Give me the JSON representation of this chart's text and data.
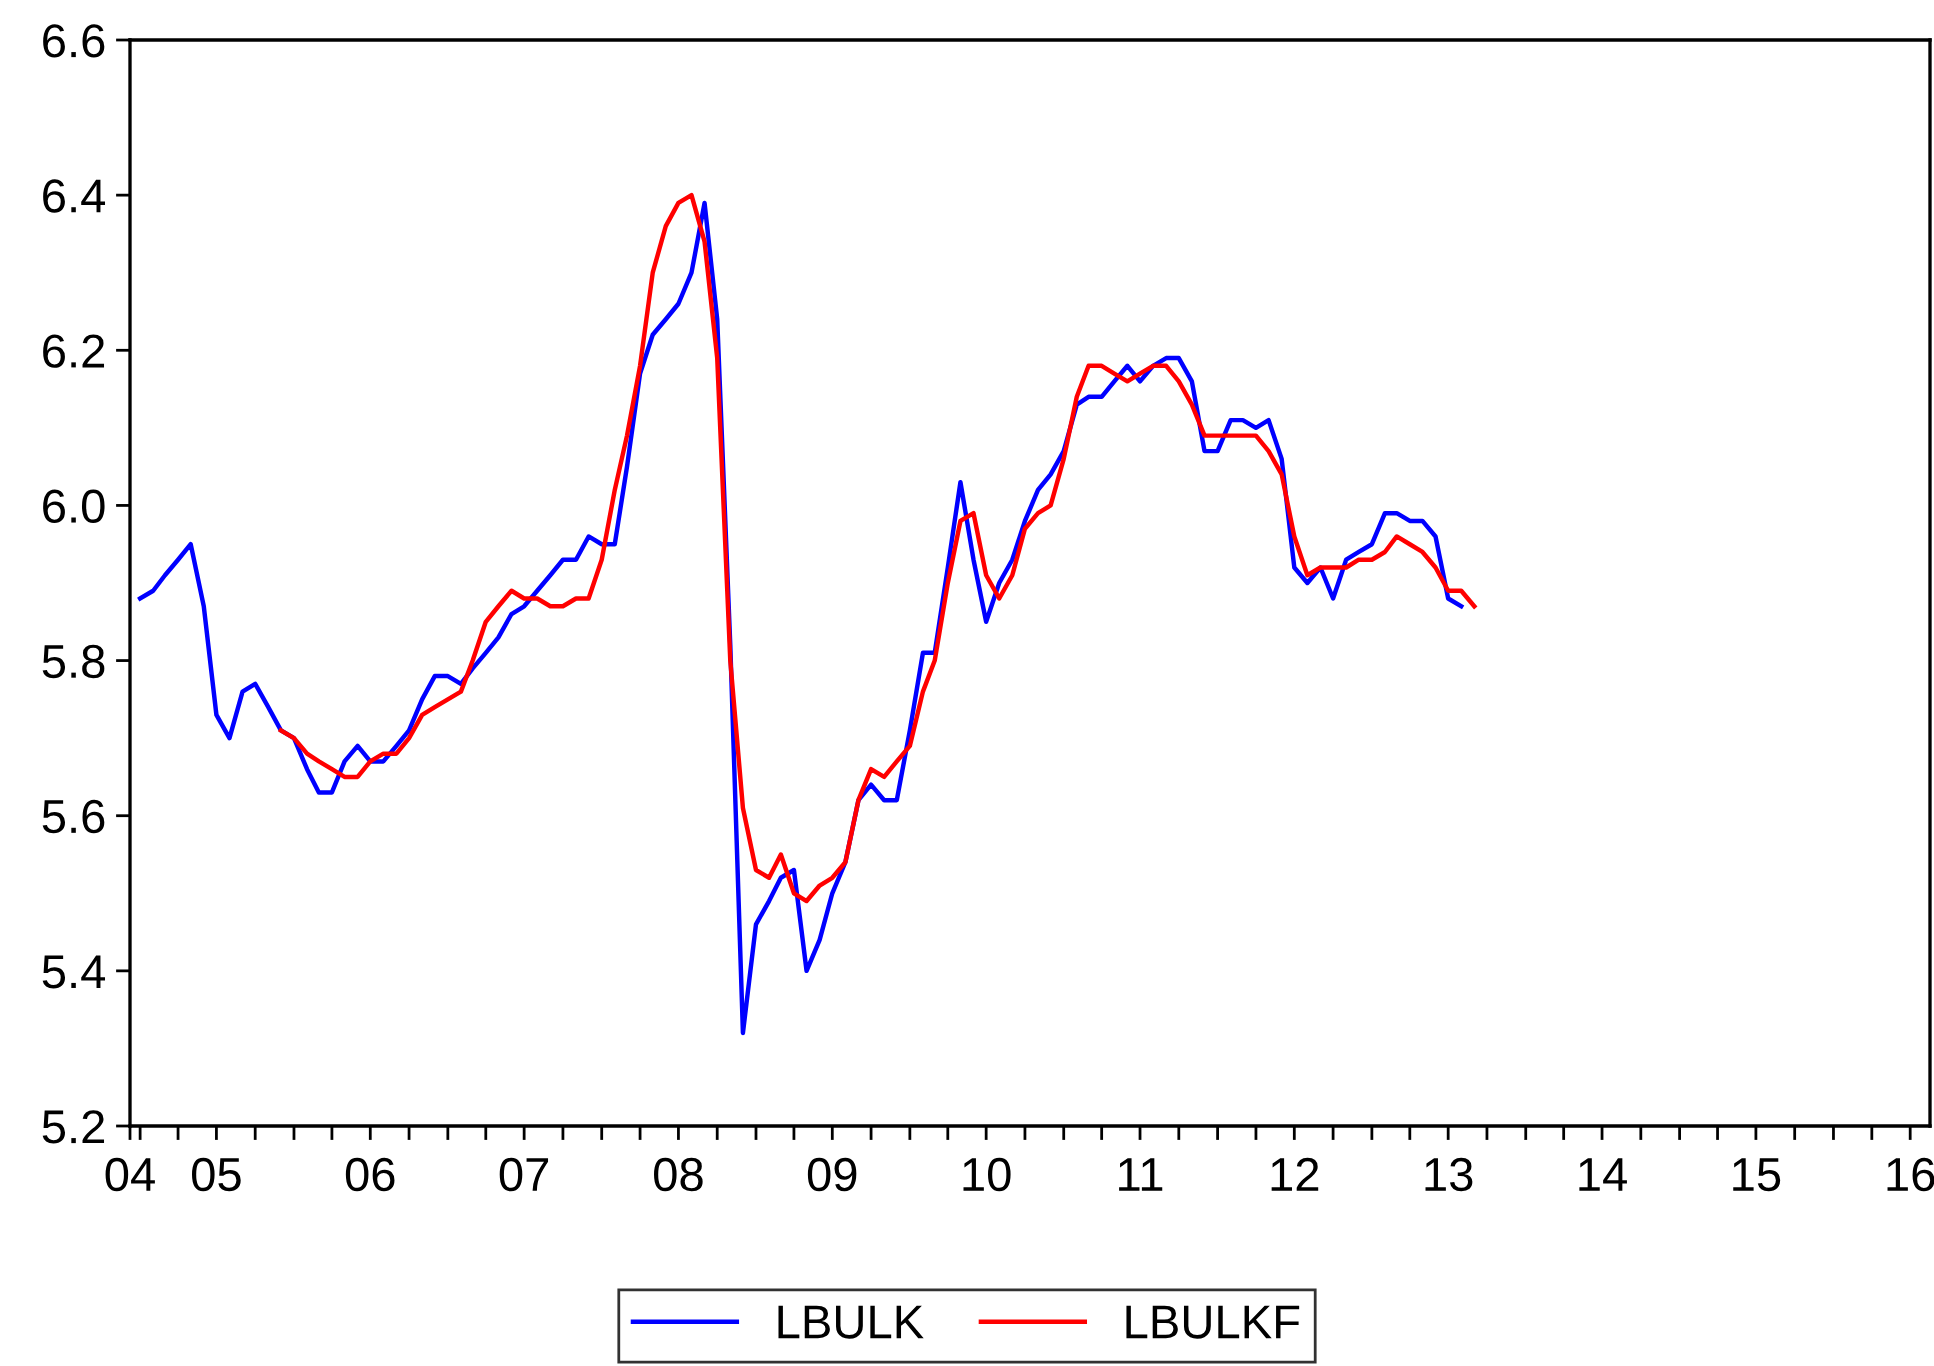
{
  "chart_data": {
    "type": "line",
    "xlim": [
      "2004-12-08",
      "2016-08-17"
    ],
    "xticks": [
      {
        "value": "2004-12-08",
        "label": "04"
      },
      {
        "value": "2005-01-01",
        "label": null
      },
      {
        "value": "2005-04-01",
        "label": null
      },
      {
        "value": "2005-07-01",
        "label": "05"
      },
      {
        "value": "2005-10-01",
        "label": null
      },
      {
        "value": "2006-01-01",
        "label": null
      },
      {
        "value": "2006-04-01",
        "label": null
      },
      {
        "value": "2006-07-01",
        "label": "06"
      },
      {
        "value": "2006-10-01",
        "label": null
      },
      {
        "value": "2007-01-01",
        "label": null
      },
      {
        "value": "2007-04-01",
        "label": null
      },
      {
        "value": "2007-07-01",
        "label": "07"
      },
      {
        "value": "2007-10-01",
        "label": null
      },
      {
        "value": "2008-01-01",
        "label": null
      },
      {
        "value": "2008-04-01",
        "label": null
      },
      {
        "value": "2008-07-01",
        "label": "08"
      },
      {
        "value": "2008-10-01",
        "label": null
      },
      {
        "value": "2009-01-01",
        "label": null
      },
      {
        "value": "2009-04-01",
        "label": null
      },
      {
        "value": "2009-07-01",
        "label": "09"
      },
      {
        "value": "2009-10-01",
        "label": null
      },
      {
        "value": "2010-01-01",
        "label": null
      },
      {
        "value": "2010-04-01",
        "label": null
      },
      {
        "value": "2010-07-01",
        "label": "10"
      },
      {
        "value": "2010-10-01",
        "label": null
      },
      {
        "value": "2011-01-01",
        "label": null
      },
      {
        "value": "2011-04-01",
        "label": null
      },
      {
        "value": "2011-07-01",
        "label": "11"
      },
      {
        "value": "2011-10-01",
        "label": null
      },
      {
        "value": "2012-01-01",
        "label": null
      },
      {
        "value": "2012-04-01",
        "label": null
      },
      {
        "value": "2012-07-01",
        "label": "12"
      },
      {
        "value": "2012-10-01",
        "label": null
      },
      {
        "value": "2013-01-01",
        "label": null
      },
      {
        "value": "2013-04-01",
        "label": null
      },
      {
        "value": "2013-07-01",
        "label": "13"
      },
      {
        "value": "2013-10-01",
        "label": null
      },
      {
        "value": "2014-01-01",
        "label": null
      },
      {
        "value": "2014-04-01",
        "label": null
      },
      {
        "value": "2014-07-01",
        "label": "14"
      },
      {
        "value": "2014-10-01",
        "label": null
      },
      {
        "value": "2015-01-01",
        "label": null
      },
      {
        "value": "2015-04-01",
        "label": null
      },
      {
        "value": "2015-07-01",
        "label": "15"
      },
      {
        "value": "2015-10-01",
        "label": null
      },
      {
        "value": "2016-01-01",
        "label": null
      },
      {
        "value": "2016-04-01",
        "label": null
      },
      {
        "value": "2016-07-01",
        "label": "16"
      }
    ],
    "ylim": [
      5.2,
      6.6
    ],
    "yticks": [
      {
        "value": 5.2,
        "label": "5.2"
      },
      {
        "value": 5.4,
        "label": "5.4"
      },
      {
        "value": 5.6,
        "label": "5.6"
      },
      {
        "value": 5.8,
        "label": "5.8"
      },
      {
        "value": 6.0,
        "label": "6.0"
      },
      {
        "value": 6.2,
        "label": "6.2"
      },
      {
        "value": 6.4,
        "label": "6.4"
      },
      {
        "value": 6.6,
        "label": "6.6"
      }
    ],
    "grid": false,
    "legend": "bottom",
    "series": [
      {
        "name": "LBULK",
        "color": "#0000ff",
        "x": [
          "2005-01",
          "2005-02",
          "2005-03",
          "2005-04",
          "2005-05",
          "2005-06",
          "2005-07",
          "2005-08",
          "2005-09",
          "2005-10",
          "2005-11",
          "2005-12",
          "2006-01",
          "2006-02",
          "2006-03",
          "2006-04",
          "2006-05",
          "2006-06",
          "2006-07",
          "2006-08",
          "2006-09",
          "2006-10",
          "2006-11",
          "2006-12",
          "2007-01",
          "2007-02",
          "2007-03",
          "2007-04",
          "2007-05",
          "2007-06",
          "2007-07",
          "2007-08",
          "2007-09",
          "2007-10",
          "2007-11",
          "2007-12",
          "2008-01",
          "2008-02",
          "2008-03",
          "2008-04",
          "2008-05",
          "2008-06",
          "2008-07",
          "2008-08",
          "2008-09",
          "2008-10",
          "2008-11",
          "2008-12",
          "2009-01",
          "2009-02",
          "2009-03",
          "2009-04",
          "2009-05",
          "2009-06",
          "2009-07",
          "2009-08",
          "2009-09",
          "2009-10",
          "2009-11",
          "2009-12",
          "2010-01",
          "2010-02",
          "2010-03",
          "2010-04",
          "2010-05",
          "2010-06",
          "2010-07",
          "2010-08",
          "2010-09",
          "2010-10",
          "2010-11",
          "2010-12",
          "2011-01",
          "2011-02",
          "2011-03",
          "2011-04",
          "2011-05",
          "2011-06",
          "2011-07",
          "2011-08",
          "2011-09",
          "2011-10",
          "2011-11",
          "2011-12",
          "2012-01",
          "2012-02",
          "2012-03",
          "2012-04",
          "2012-05",
          "2012-06",
          "2012-07",
          "2012-08",
          "2012-09",
          "2012-10",
          "2012-11",
          "2012-12",
          "2013-01",
          "2013-02",
          "2013-03",
          "2013-04",
          "2013-05",
          "2013-06",
          "2013-07",
          "2013-08"
        ],
        "values": [
          5.88,
          5.89,
          5.91,
          5.93,
          5.95,
          5.87,
          5.73,
          5.7,
          5.76,
          5.77,
          5.74,
          5.71,
          5.7,
          5.66,
          5.63,
          5.63,
          5.67,
          5.69,
          5.67,
          5.67,
          5.69,
          5.71,
          5.75,
          5.78,
          5.78,
          5.77,
          5.79,
          5.81,
          5.83,
          5.86,
          5.87,
          5.89,
          5.91,
          5.93,
          5.93,
          5.96,
          5.95,
          5.95,
          6.05,
          6.17,
          6.22,
          6.24,
          6.26,
          6.3,
          6.39,
          6.24,
          5.82,
          5.32,
          5.46,
          5.49,
          5.52,
          5.53,
          5.4,
          5.44,
          5.5,
          5.54,
          5.62,
          5.64,
          5.62,
          5.62,
          5.71,
          5.81,
          5.81,
          5.92,
          6.03,
          5.93,
          5.85,
          5.9,
          5.93,
          5.98,
          6.02,
          6.04,
          6.07,
          6.13,
          6.14,
          6.14,
          6.16,
          6.18,
          6.16,
          6.18,
          6.19,
          6.19,
          6.16,
          6.07,
          6.07,
          6.11,
          6.11,
          6.1,
          6.11,
          6.06,
          5.92,
          5.9,
          5.92,
          5.88,
          5.93,
          5.94,
          5.95,
          5.99,
          5.99,
          5.98,
          5.98,
          5.96,
          5.88,
          5.87
        ]
      },
      {
        "name": "LBULKF",
        "color": "#ff0000",
        "x": [
          "2005-12",
          "2006-01",
          "2006-02",
          "2006-03",
          "2006-04",
          "2006-05",
          "2006-06",
          "2006-07",
          "2006-08",
          "2006-09",
          "2006-10",
          "2006-11",
          "2006-12",
          "2007-01",
          "2007-02",
          "2007-03",
          "2007-04",
          "2007-05",
          "2007-06",
          "2007-07",
          "2007-08",
          "2007-09",
          "2007-10",
          "2007-11",
          "2007-12",
          "2008-01",
          "2008-02",
          "2008-03",
          "2008-04",
          "2008-05",
          "2008-06",
          "2008-07",
          "2008-08",
          "2008-09",
          "2008-10",
          "2008-11",
          "2008-12",
          "2009-01",
          "2009-02",
          "2009-03",
          "2009-04",
          "2009-05",
          "2009-06",
          "2009-07",
          "2009-08",
          "2009-09",
          "2009-10",
          "2009-11",
          "2009-12",
          "2010-01",
          "2010-02",
          "2010-03",
          "2010-04",
          "2010-05",
          "2010-06",
          "2010-07",
          "2010-08",
          "2010-09",
          "2010-10",
          "2010-11",
          "2010-12",
          "2011-01",
          "2011-02",
          "2011-03",
          "2011-04",
          "2011-05",
          "2011-06",
          "2011-07",
          "2011-08",
          "2011-09",
          "2011-10",
          "2011-11",
          "2011-12",
          "2012-01",
          "2012-02",
          "2012-03",
          "2012-04",
          "2012-05",
          "2012-06",
          "2012-07",
          "2012-08",
          "2012-09",
          "2012-10",
          "2012-11",
          "2012-12",
          "2013-01",
          "2013-02",
          "2013-03",
          "2013-04",
          "2013-05",
          "2013-06",
          "2013-07",
          "2013-08",
          "2013-09"
        ],
        "values": [
          5.71,
          5.7,
          5.68,
          5.67,
          5.66,
          5.65,
          5.65,
          5.67,
          5.68,
          5.68,
          5.7,
          5.73,
          5.74,
          5.75,
          5.76,
          5.8,
          5.85,
          5.87,
          5.89,
          5.88,
          5.88,
          5.87,
          5.87,
          5.88,
          5.88,
          5.93,
          6.02,
          6.09,
          6.18,
          6.3,
          6.36,
          6.39,
          6.4,
          6.34,
          6.19,
          5.8,
          5.61,
          5.53,
          5.52,
          5.55,
          5.5,
          5.49,
          5.51,
          5.52,
          5.54,
          5.62,
          5.66,
          5.65,
          5.67,
          5.69,
          5.76,
          5.8,
          5.9,
          5.98,
          5.99,
          5.91,
          5.88,
          5.91,
          5.97,
          5.99,
          6.0,
          6.06,
          6.14,
          6.18,
          6.18,
          6.17,
          6.16,
          6.17,
          6.18,
          6.18,
          6.16,
          6.13,
          6.09,
          6.09,
          6.09,
          6.09,
          6.09,
          6.07,
          6.04,
          5.96,
          5.91,
          5.92,
          5.92,
          5.92,
          5.93,
          5.93,
          5.94,
          5.96,
          5.95,
          5.94,
          5.92,
          5.89,
          5.89,
          5.87
        ]
      }
    ]
  }
}
